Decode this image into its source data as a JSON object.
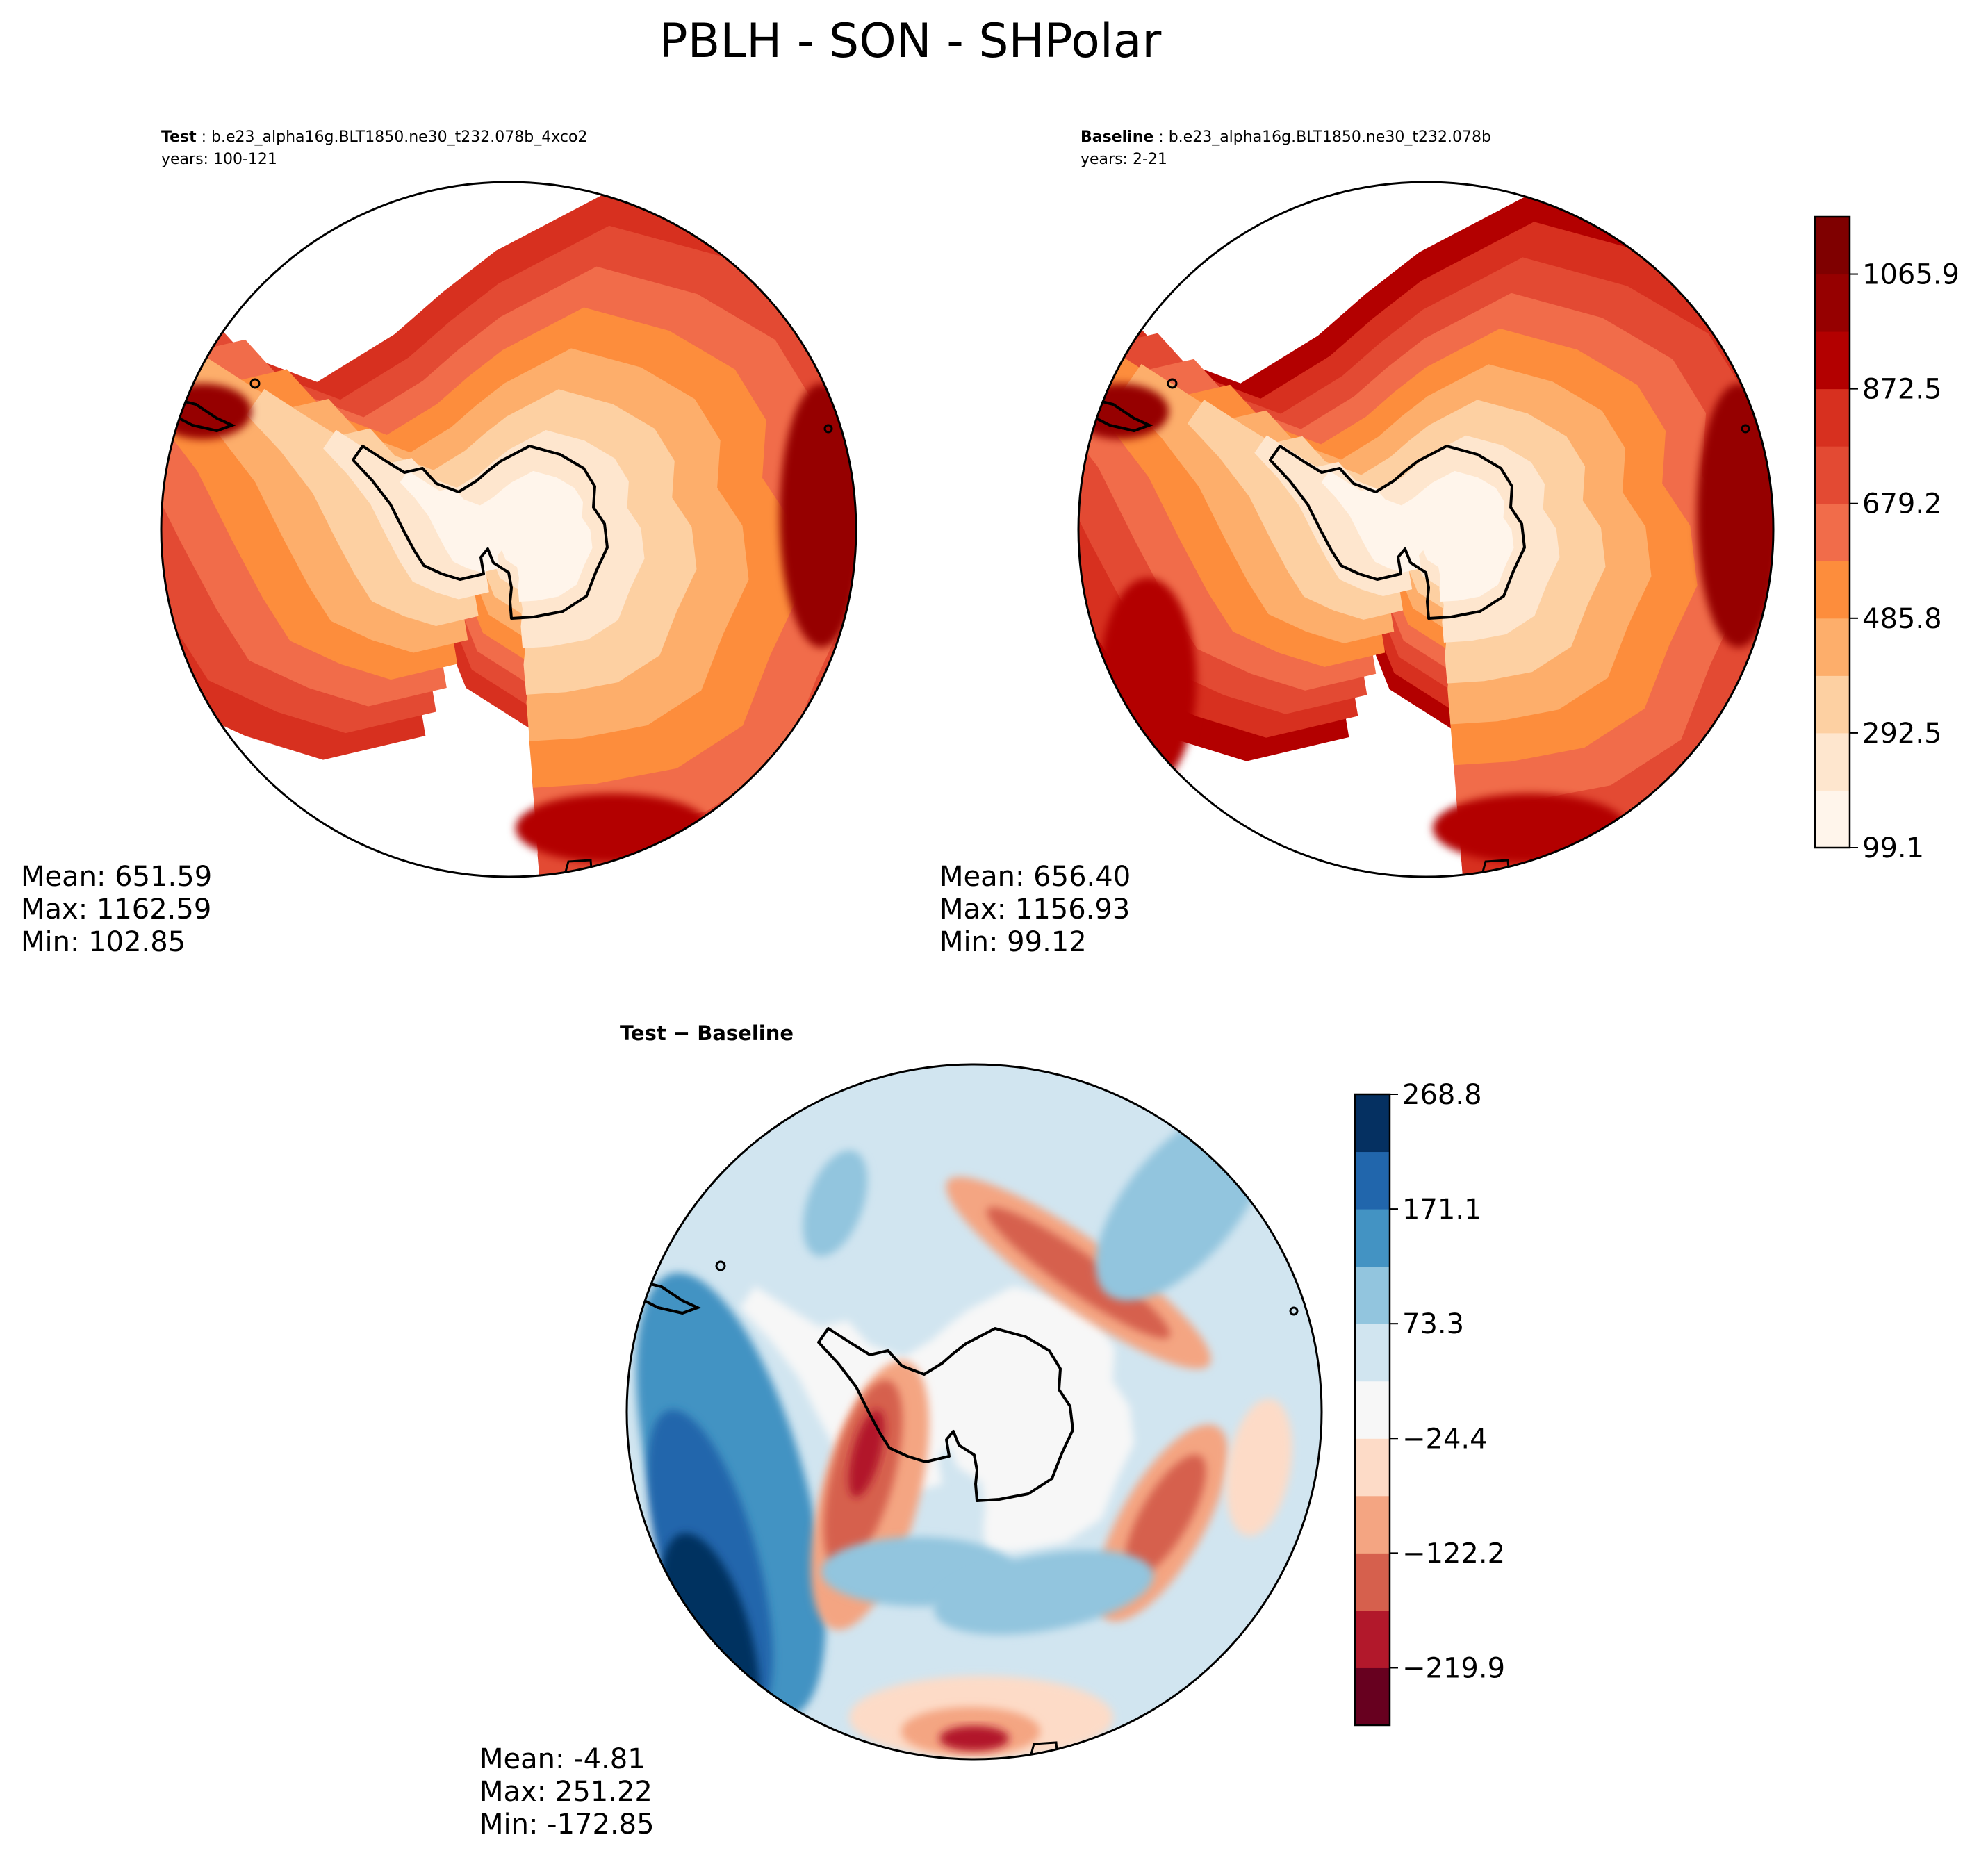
{
  "title": "PBLH - SON - SHPolar",
  "chart_data": [
    {
      "type": "heatmap",
      "panel": "test",
      "label_bold": "Test",
      "case": "b.e23_alpha16g.BLT1850.ne30_t232.078b_4xco2",
      "years": "years: 100-121",
      "stats": {
        "mean": "Mean: 651.59",
        "max": "Max: 1162.59",
        "min": "Min: 102.85"
      },
      "center_level": 0,
      "outer_level": 7,
      "warm_patch_level": 9
    },
    {
      "type": "heatmap",
      "panel": "baseline",
      "label_bold": "Baseline",
      "case": "b.e23_alpha16g.BLT1850.ne30_t232.078b",
      "years": "years: 2-21",
      "stats": {
        "mean": "Mean: 656.40",
        "max": "Max: 1156.93",
        "min": "Min: 99.12"
      },
      "center_level": 0,
      "outer_level": 8,
      "warm_patch_level": 9,
      "colorbar": {
        "ticks": [
          "99.1",
          "292.5",
          "485.8",
          "679.2",
          "872.5",
          "1065.9"
        ],
        "levels": 11,
        "colors": [
          "#fff5eb",
          "#fee6ce",
          "#fdd0a2",
          "#fdae6b",
          "#fd8d3c",
          "#f16c4a",
          "#e34a33",
          "#d7301f",
          "#b30000",
          "#960000",
          "#7f0000"
        ]
      }
    },
    {
      "type": "heatmap",
      "panel": "difference",
      "label": "Test − Baseline",
      "stats": {
        "mean": "Mean: -4.81",
        "max": "Max: 251.22",
        "min": "Min: -172.85"
      },
      "colorbar": {
        "ticks": [
          "268.8",
          "171.1",
          "73.3",
          "−24.4",
          "−122.2",
          "−219.9"
        ],
        "levels": 11,
        "colors": [
          "#67001f",
          "#b2182b",
          "#d6604d",
          "#f4a582",
          "#fddbc7",
          "#f7f7f7",
          "#d1e5f0",
          "#92c5de",
          "#4393c3",
          "#2166ac",
          "#053061"
        ]
      }
    }
  ]
}
